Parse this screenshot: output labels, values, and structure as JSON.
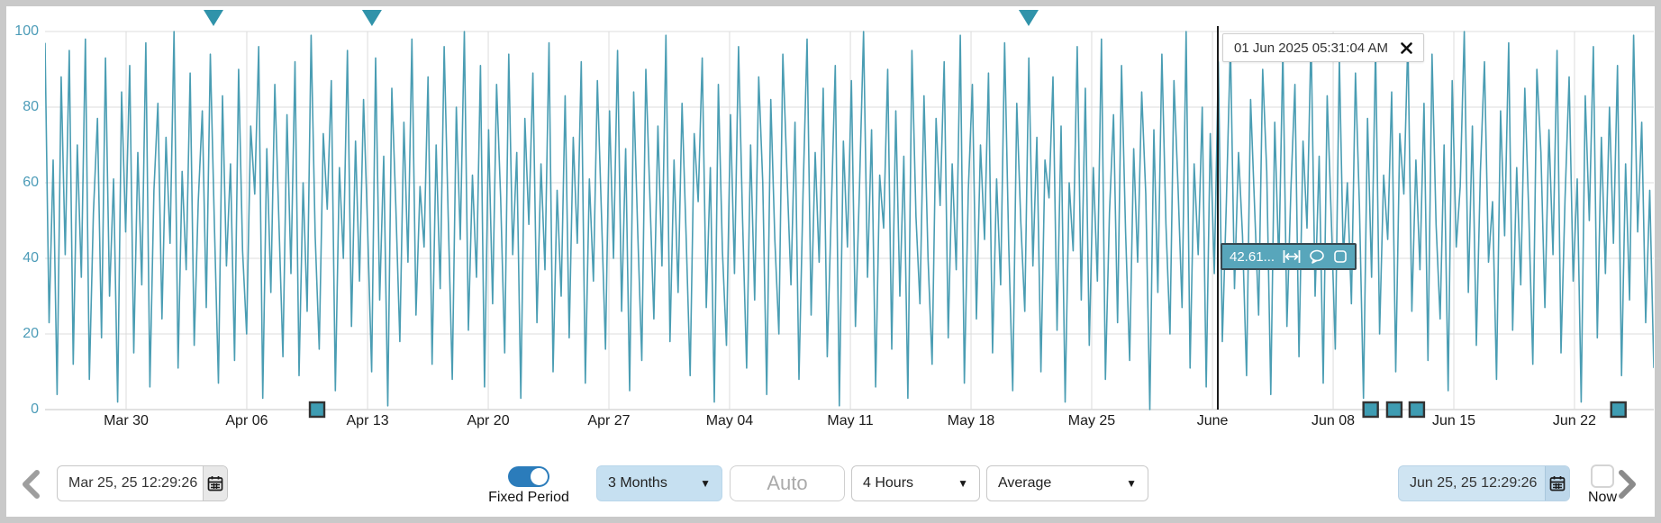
{
  "chart_data": {
    "type": "line",
    "title": "",
    "ylabel": "",
    "xlabel": "",
    "ylim": [
      0,
      100
    ],
    "grid": true,
    "y_ticks": [
      0,
      20,
      40,
      60,
      80,
      100
    ],
    "x_tick_labels": [
      "Mar 30",
      "Apr 06",
      "Apr 13",
      "Apr 20",
      "Apr 27",
      "May 04",
      "May 11",
      "May 18",
      "May 25",
      "June",
      "Jun 08",
      "Jun 15",
      "Jun 22"
    ],
    "x_tick_percents": [
      5.04,
      12.54,
      20.05,
      27.55,
      35.05,
      42.55,
      50.06,
      57.56,
      65.06,
      72.57,
      80.07,
      87.57,
      95.07
    ],
    "line_color": "#4a9db3",
    "marker_color": "#3093aa",
    "event_triangles_percent": [
      10.47,
      20.32,
      61.14
    ],
    "event_squares_percent": [
      16.91,
      82.4,
      83.87,
      85.27,
      97.8
    ],
    "cursor": {
      "percent": 72.9,
      "timestamp": "01 Jun 2025 05:31:04 AM",
      "value_label": "42.61..."
    },
    "values": [
      97,
      23,
      66,
      4,
      88,
      41,
      95,
      12,
      70,
      35,
      98,
      8,
      52,
      77,
      19,
      93,
      30,
      61,
      2,
      84,
      47,
      91,
      15,
      68,
      33,
      97,
      6,
      58,
      81,
      24,
      72,
      44,
      100,
      11,
      63,
      37,
      89,
      17,
      55,
      79,
      27,
      94,
      49,
      7,
      83,
      38,
      65,
      13,
      90,
      42,
      20,
      75,
      57,
      96,
      3,
      69,
      31,
      86,
      50,
      14,
      78,
      36,
      92,
      9,
      60,
      26,
      99,
      46,
      16,
      73,
      53,
      87,
      5,
      64,
      40,
      95,
      22,
      71,
      34,
      82,
      48,
      10,
      93,
      29,
      67,
      1,
      85,
      54,
      18,
      76,
      39,
      98,
      25,
      59,
      43,
      88,
      12,
      70,
      32,
      96,
      51,
      8,
      80,
      45,
      100,
      21,
      62,
      35,
      91,
      6,
      74,
      28,
      86,
      56,
      15,
      94,
      41,
      68,
      3,
      77,
      49,
      89,
      23,
      65,
      37,
      97,
      10,
      58,
      30,
      83,
      19,
      72,
      44,
      92,
      7,
      61,
      34,
      87,
      52,
      16,
      79,
      40,
      95,
      26,
      69,
      5,
      84,
      47,
      13,
      90,
      57,
      24,
      75,
      38,
      99,
      18,
      66,
      31,
      81,
      46,
      9,
      73,
      55,
      93,
      27,
      64,
      2,
      86,
      42,
      17,
      78,
      36,
      96,
      50,
      11,
      70,
      29,
      88,
      60,
      4,
      82,
      45,
      20,
      94,
      63,
      33,
      76,
      8,
      57,
      98,
      25,
      68,
      39,
      85,
      14,
      53,
      91,
      1,
      71,
      43,
      87,
      22,
      59,
      100,
      35,
      74,
      6,
      62,
      48,
      90,
      16,
      79,
      30,
      67,
      3,
      95,
      51,
      28,
      83,
      40,
      12,
      77,
      54,
      92,
      19,
      65,
      37,
      99,
      7,
      58,
      86,
      24,
      70,
      45,
      89,
      15,
      61,
      33,
      97,
      44,
      5,
      81,
      50,
      26,
      93,
      38,
      72,
      10,
      66,
      56,
      88,
      21,
      75,
      2,
      60,
      42,
      96,
      29,
      85,
      17,
      64,
      34,
      98,
      8,
      52,
      78,
      23,
      91,
      47,
      13,
      69,
      39,
      84,
      57,
      0,
      74,
      31,
      94,
      49,
      20,
      87,
      59,
      27,
      100,
      11,
      65,
      41,
      80,
      6,
      73,
      36,
      92,
      18,
      55,
      97,
      32,
      68,
      46,
      9,
      82,
      53,
      25,
      90,
      63,
      4,
      76,
      38,
      95,
      22,
      58,
      86,
      14,
      71,
      48,
      99,
      30,
      67,
      7,
      83,
      51,
      16,
      93,
      40,
      60,
      28,
      89,
      54,
      3,
      77,
      35,
      96,
      20,
      62,
      45,
      84,
      10,
      73,
      57,
      98,
      26,
      66,
      37,
      81,
      13,
      94,
      49,
      24,
      70,
      5,
      87,
      43,
      59,
      100,
      31,
      75,
      17,
      63,
      92,
      39,
      55,
      8,
      79,
      46,
      97,
      21,
      64,
      33,
      85,
      52,
      12,
      90,
      68,
      27,
      74,
      41,
      95,
      15,
      56,
      88,
      34,
      61,
      2,
      83,
      50,
      96,
      19,
      72,
      36,
      80,
      44,
      91,
      9,
      65,
      29,
      99,
      47,
      76,
      23,
      58,
      11
    ]
  },
  "toolbar": {
    "start_date": {
      "value": "Mar 25, 25 12:29:26"
    },
    "fixed_period": {
      "label": "Fixed Period",
      "enabled": true
    },
    "period_select": {
      "value": "3 Months"
    },
    "auto_input": {
      "placeholder": "Auto"
    },
    "interval_select": {
      "value": "4 Hours"
    },
    "aggregate_select": {
      "value": "Average"
    },
    "end_date": {
      "value": "Jun 25, 25 12:29:26"
    },
    "now_checkbox": {
      "label": "Now",
      "checked": false
    }
  },
  "colors": {
    "line": "#4a9db3",
    "event_marker": "#3093aa",
    "toggle_on": "#2b7cbb",
    "period_select_bg": "#c6e0f1",
    "end_date_bg": "#cfe4f2",
    "y_axis_label": "#4d9cb8"
  }
}
